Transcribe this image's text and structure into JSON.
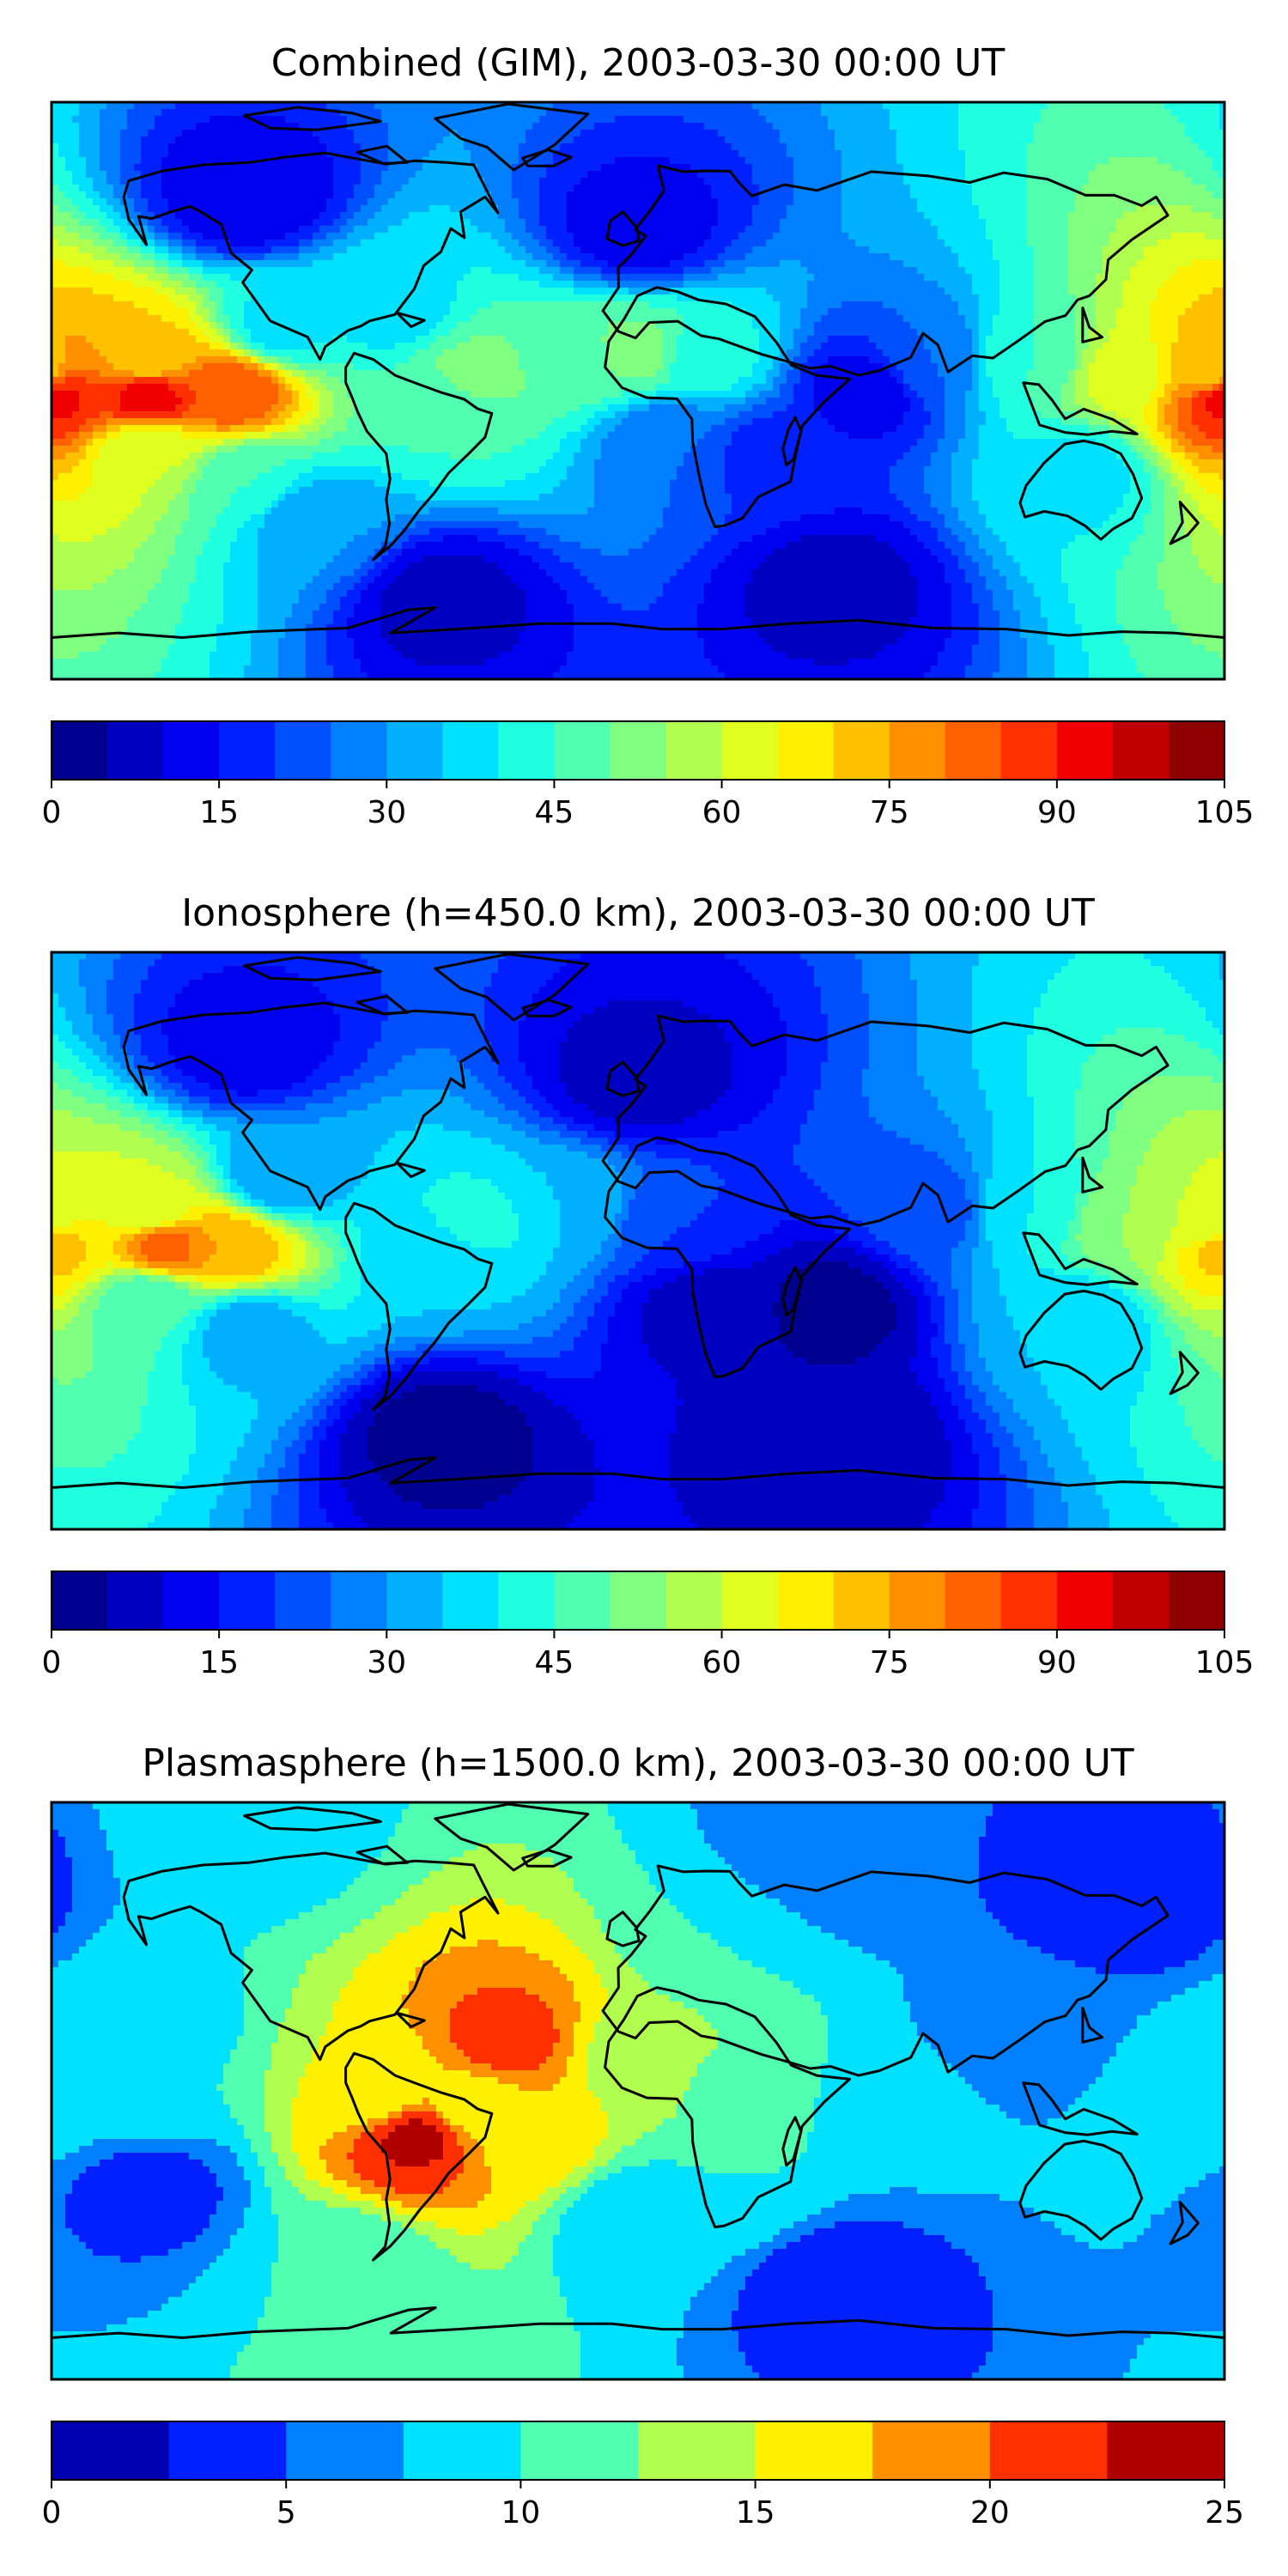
{
  "chart_data": [
    {
      "type": "heatmap",
      "title": "Combined (GIM), 2003-03-30 00:00 UT",
      "colorbar": {
        "ticks": [
          0,
          15,
          30,
          45,
          60,
          75,
          90,
          105
        ],
        "range": [
          0,
          105
        ],
        "levels": 21,
        "colors": [
          "#00008f",
          "#0000c0",
          "#0000f0",
          "#0020ff",
          "#0050ff",
          "#0080ff",
          "#00b0ff",
          "#00e0ff",
          "#20ffdf",
          "#50ffaf",
          "#80ff80",
          "#b0ff50",
          "#e0ff20",
          "#fff000",
          "#ffc000",
          "#ff9000",
          "#ff6000",
          "#ff3000",
          "#f00000",
          "#c00000",
          "#8f0000"
        ]
      },
      "field": [
        {
          "lon": -180,
          "lat": -2,
          "value": 92
        },
        {
          "lon": -150,
          "lat": -2,
          "value": 93
        },
        {
          "lon": -125,
          "lat": 0,
          "value": 85
        },
        {
          "lon": -150,
          "lat": 10,
          "value": 70
        },
        {
          "lon": -150,
          "lat": -18,
          "value": 60
        },
        {
          "lon": -110,
          "lat": 20,
          "value": 38
        },
        {
          "lon": -120,
          "lat": -28,
          "value": 45
        },
        {
          "lon": -100,
          "lat": -40,
          "value": 30
        },
        {
          "lon": -60,
          "lat": -5,
          "value": 45
        },
        {
          "lon": -50,
          "lat": 5,
          "value": 52
        },
        {
          "lon": -75,
          "lat": 25,
          "value": 38
        },
        {
          "lon": -20,
          "lat": 10,
          "value": 48
        },
        {
          "lon": 0,
          "lat": 12,
          "value": 52
        },
        {
          "lon": 20,
          "lat": 10,
          "value": 42
        },
        {
          "lon": 10,
          "lat": -15,
          "value": 25
        },
        {
          "lon": 40,
          "lat": -20,
          "value": 18
        },
        {
          "lon": 70,
          "lat": 0,
          "value": 12
        },
        {
          "lon": 90,
          "lat": 10,
          "value": 25
        },
        {
          "lon": 120,
          "lat": 10,
          "value": 45
        },
        {
          "lon": 150,
          "lat": 5,
          "value": 62
        },
        {
          "lon": 175,
          "lat": 5,
          "value": 72
        },
        {
          "lon": 135,
          "lat": -25,
          "value": 38
        },
        {
          "lon": 0,
          "lat": 50,
          "value": 12
        },
        {
          "lon": -60,
          "lat": -65,
          "value": 8
        },
        {
          "lon": 60,
          "lat": -60,
          "value": 8
        },
        {
          "lon": -120,
          "lat": 60,
          "value": 10
        }
      ]
    },
    {
      "type": "heatmap",
      "title": "Ionosphere  (h=450.0 km), 2003-03-30 00:00 UT",
      "colorbar": {
        "ticks": [
          0,
          15,
          30,
          45,
          60,
          75,
          90,
          105
        ],
        "range": [
          0,
          105
        ],
        "levels": 21,
        "colors": [
          "#00008f",
          "#0000c0",
          "#0000f0",
          "#0020ff",
          "#0050ff",
          "#0080ff",
          "#00b0ff",
          "#00e0ff",
          "#20ffdf",
          "#50ffaf",
          "#80ff80",
          "#b0ff50",
          "#e0ff20",
          "#fff000",
          "#ffc000",
          "#ff9000",
          "#ff6000",
          "#ff3000",
          "#f00000",
          "#c00000",
          "#8f0000"
        ]
      },
      "field": [
        {
          "lon": -180,
          "lat": -2,
          "value": 72
        },
        {
          "lon": -145,
          "lat": -2,
          "value": 82
        },
        {
          "lon": -125,
          "lat": -2,
          "value": 75
        },
        {
          "lon": -150,
          "lat": 10,
          "value": 60
        },
        {
          "lon": -150,
          "lat": -18,
          "value": 45
        },
        {
          "lon": -110,
          "lat": 20,
          "value": 30
        },
        {
          "lon": -120,
          "lat": -28,
          "value": 32
        },
        {
          "lon": -60,
          "lat": -5,
          "value": 35
        },
        {
          "lon": -50,
          "lat": 5,
          "value": 42
        },
        {
          "lon": -20,
          "lat": 10,
          "value": 35
        },
        {
          "lon": 10,
          "lat": 5,
          "value": 20
        },
        {
          "lon": 20,
          "lat": -20,
          "value": 8
        },
        {
          "lon": 60,
          "lat": -20,
          "value": 3
        },
        {
          "lon": 90,
          "lat": 10,
          "value": 22
        },
        {
          "lon": 120,
          "lat": 10,
          "value": 40
        },
        {
          "lon": 150,
          "lat": 5,
          "value": 55
        },
        {
          "lon": 175,
          "lat": 5,
          "value": 60
        },
        {
          "lon": 135,
          "lat": -25,
          "value": 35
        },
        {
          "lon": 0,
          "lat": 50,
          "value": 8
        },
        {
          "lon": -60,
          "lat": -60,
          "value": 3
        },
        {
          "lon": 60,
          "lat": -60,
          "value": 5
        },
        {
          "lon": -120,
          "lat": 60,
          "value": 12
        }
      ]
    },
    {
      "type": "heatmap",
      "title": "Plasmasphere (h=1500.0 km), 2003-03-30 00:00 UT",
      "colorbar": {
        "ticks": [
          0,
          5,
          10,
          15,
          20,
          25
        ],
        "range": [
          0,
          25
        ],
        "levels": 10,
        "colors": [
          "#0000b0",
          "#0020ff",
          "#0080ff",
          "#00e0ff",
          "#50ffaf",
          "#b0ff50",
          "#fff000",
          "#ff9000",
          "#ff3000",
          "#b00000"
        ]
      },
      "field": [
        {
          "lon": -68,
          "lat": -15,
          "value": 23
        },
        {
          "lon": -40,
          "lat": 15,
          "value": 21
        },
        {
          "lon": -50,
          "lat": -5,
          "value": 16
        },
        {
          "lon": -35,
          "lat": -15,
          "value": 17
        },
        {
          "lon": -80,
          "lat": 0,
          "value": 15
        },
        {
          "lon": 0,
          "lat": 10,
          "value": 14
        },
        {
          "lon": 30,
          "lat": 0,
          "value": 12
        },
        {
          "lon": 30,
          "lat": -30,
          "value": 10
        },
        {
          "lon": 80,
          "lat": -5,
          "value": 8
        },
        {
          "lon": 120,
          "lat": 20,
          "value": 6
        },
        {
          "lon": 175,
          "lat": 0,
          "value": 10
        },
        {
          "lon": -150,
          "lat": 0,
          "value": 10
        },
        {
          "lon": -150,
          "lat": 20,
          "value": 9
        },
        {
          "lon": -150,
          "lat": -30,
          "value": 4
        },
        {
          "lon": -90,
          "lat": -55,
          "value": 10
        },
        {
          "lon": 0,
          "lat": -40,
          "value": 8
        },
        {
          "lon": 30,
          "lat": 45,
          "value": 10
        },
        {
          "lon": -120,
          "lat": 80,
          "value": 9
        },
        {
          "lon": 60,
          "lat": -60,
          "value": 3
        },
        {
          "lon": 150,
          "lat": 60,
          "value": 3
        },
        {
          "lon": 60,
          "lat": 70,
          "value": 5
        }
      ]
    }
  ]
}
